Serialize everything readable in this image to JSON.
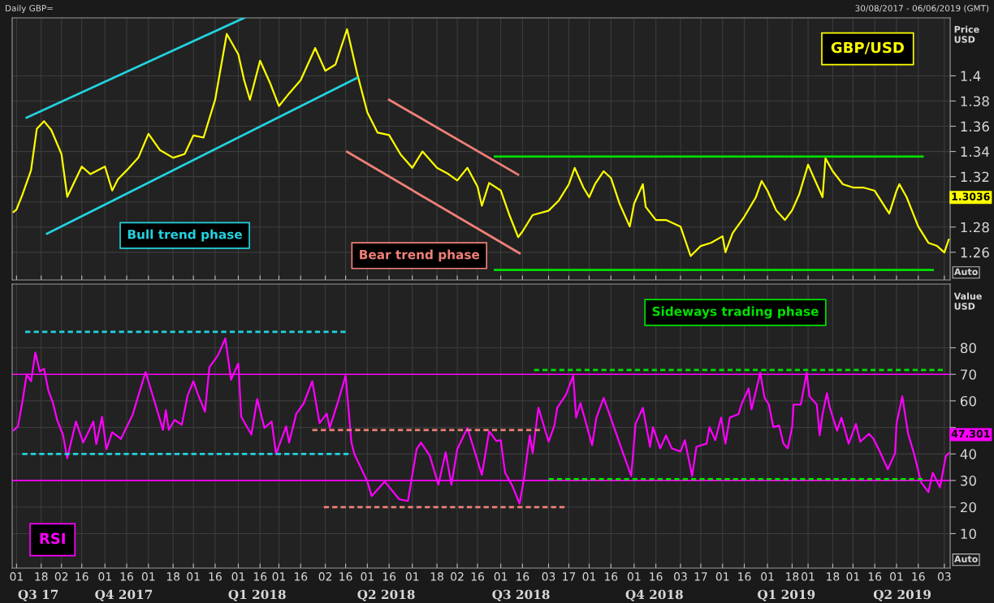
{
  "chart_data": [
    {
      "type": "line",
      "title": "Daily GBP=",
      "subtitle": "30/08/2017 - 06/06/2019 (GMT)",
      "ylabel": "Price\nUSD",
      "grid": true,
      "tick_labels": "y",
      "xlim": [
        "2017-08-29",
        "2019-06-07"
      ],
      "ylim": [
        1.238,
        1.446
      ],
      "xticks": [
        {
          "value": "2017-09-01",
          "label": null
        },
        {
          "value": "2017-09-18",
          "label": null
        },
        {
          "value": "2017-10-02",
          "label": null
        },
        {
          "value": "2017-10-16",
          "label": null
        },
        {
          "value": "2017-11-01",
          "label": null
        },
        {
          "value": "2017-11-16",
          "label": null
        },
        {
          "value": "2017-12-01",
          "label": null
        },
        {
          "value": "2017-12-18",
          "label": null
        },
        {
          "value": "2018-01-01",
          "label": null
        },
        {
          "value": "2018-01-16",
          "label": null
        },
        {
          "value": "2018-02-01",
          "label": null
        },
        {
          "value": "2018-02-16",
          "label": null
        },
        {
          "value": "2018-03-01",
          "label": null
        },
        {
          "value": "2018-03-16",
          "label": null
        },
        {
          "value": "2018-04-02",
          "label": null
        },
        {
          "value": "2018-04-16",
          "label": null
        },
        {
          "value": "2018-05-01",
          "label": null
        },
        {
          "value": "2018-05-16",
          "label": null
        },
        {
          "value": "2018-06-01",
          "label": null
        },
        {
          "value": "2018-06-18",
          "label": null
        },
        {
          "value": "2018-07-02",
          "label": null
        },
        {
          "value": "2018-07-16",
          "label": null
        },
        {
          "value": "2018-08-01",
          "label": null
        },
        {
          "value": "2018-08-16",
          "label": null
        },
        {
          "value": "2018-09-03",
          "label": null
        },
        {
          "value": "2018-09-17",
          "label": null
        },
        {
          "value": "2018-10-01",
          "label": null
        },
        {
          "value": "2018-10-16",
          "label": null
        },
        {
          "value": "2018-11-01",
          "label": null
        },
        {
          "value": "2018-11-16",
          "label": null
        },
        {
          "value": "2018-12-03",
          "label": null
        },
        {
          "value": "2018-12-17",
          "label": null
        },
        {
          "value": "2019-01-01",
          "label": null
        },
        {
          "value": "2019-01-16",
          "label": null
        },
        {
          "value": "2019-02-01",
          "label": null
        },
        {
          "value": "2019-02-18",
          "label": null
        },
        {
          "value": "2019-03-01",
          "label": null
        },
        {
          "value": "2019-03-18",
          "label": null
        },
        {
          "value": "2019-04-01",
          "label": null
        },
        {
          "value": "2019-04-16",
          "label": null
        },
        {
          "value": "2019-05-01",
          "label": null
        },
        {
          "value": "2019-05-16",
          "label": null
        },
        {
          "value": "2019-06-03",
          "label": null
        }
      ],
      "yticks": [
        1.26,
        1.28,
        {
          "value": 1.3,
          "label": null
        },
        1.32,
        1.34,
        1.36,
        1.38,
        1.4
      ],
      "annotations": [
        "Bull trend phase",
        "Bear trend phase",
        "1.3036",
        "Auto"
      ],
      "series": [
        {
          "name": "GBP/USD",
          "color": "#ffff00",
          "line_style": "solid",
          "x": [
            "2017-08-30",
            "2017-09-01",
            "2017-09-05",
            "2017-09-11",
            "2017-09-15",
            "2017-09-20",
            "2017-09-25",
            "2017-10-02",
            "2017-10-06",
            "2017-10-16",
            "2017-10-22",
            "2017-11-01",
            "2017-11-06",
            "2017-11-10",
            "2017-11-16",
            "2017-11-24",
            "2017-12-01",
            "2017-12-09",
            "2017-12-18",
            "2017-12-26",
            "2018-01-01",
            "2018-01-08",
            "2018-01-16",
            "2018-01-24",
            "2018-02-01",
            "2018-02-05",
            "2018-02-09",
            "2018-02-16",
            "2018-02-23",
            "2018-03-01",
            "2018-03-08",
            "2018-03-16",
            "2018-03-26",
            "2018-04-02",
            "2018-04-09",
            "2018-04-17",
            "2018-04-24",
            "2018-05-01",
            "2018-05-08",
            "2018-05-16",
            "2018-05-24",
            "2018-06-01",
            "2018-06-08",
            "2018-06-18",
            "2018-06-26",
            "2018-07-02",
            "2018-07-09",
            "2018-07-16",
            "2018-07-19",
            "2018-07-24",
            "2018-08-01",
            "2018-08-07",
            "2018-08-13",
            "2018-08-16",
            "2018-08-23",
            "2018-09-03",
            "2018-09-10",
            "2018-09-17",
            "2018-09-21",
            "2018-09-27",
            "2018-10-01",
            "2018-10-05",
            "2018-10-11",
            "2018-10-16",
            "2018-10-22",
            "2018-10-29",
            "2018-11-01",
            "2018-11-07",
            "2018-11-09",
            "2018-11-16",
            "2018-11-23",
            "2018-12-03",
            "2018-12-10",
            "2018-12-17",
            "2018-12-24",
            "2019-01-01",
            "2019-01-03",
            "2019-01-08",
            "2019-01-16",
            "2019-01-24",
            "2019-01-28",
            "2019-02-01",
            "2019-02-07",
            "2019-02-13",
            "2019-02-18",
            "2019-02-23",
            "2019-03-01",
            "2019-03-06",
            "2019-03-11",
            "2019-03-13",
            "2019-03-18",
            "2019-03-25",
            "2019-04-01",
            "2019-04-08",
            "2019-04-16",
            "2019-04-23",
            "2019-04-26",
            "2019-05-01",
            "2019-05-03",
            "2019-05-08",
            "2019-05-16",
            "2019-05-23",
            "2019-05-29",
            "2019-06-03",
            "2019-06-06"
          ],
          "values": [
            1.292,
            1.294,
            1.3055,
            1.325,
            1.358,
            1.364,
            1.357,
            1.338,
            1.304,
            1.328,
            1.322,
            1.328,
            1.309,
            1.318,
            1.325,
            1.335,
            1.354,
            1.341,
            1.335,
            1.338,
            1.3527,
            1.351,
            1.381,
            1.4333,
            1.417,
            1.3966,
            1.381,
            1.412,
            1.394,
            1.376,
            1.386,
            1.3966,
            1.422,
            1.404,
            1.409,
            1.437,
            1.4017,
            1.371,
            1.355,
            1.353,
            1.3375,
            1.327,
            1.34,
            1.327,
            1.322,
            1.317,
            1.327,
            1.312,
            1.297,
            1.315,
            1.309,
            1.2895,
            1.272,
            1.2765,
            1.2895,
            1.293,
            1.301,
            1.314,
            1.327,
            1.3114,
            1.3037,
            1.314,
            1.3243,
            1.319,
            1.2985,
            1.2804,
            1.2985,
            1.314,
            1.296,
            1.2856,
            1.2856,
            1.2804,
            1.257,
            1.265,
            1.2675,
            1.2727,
            1.26,
            1.2753,
            1.2882,
            1.3037,
            1.3166,
            1.3088,
            1.2933,
            1.2856,
            1.2933,
            1.3063,
            1.3295,
            1.3166,
            1.3037,
            1.3346,
            1.3243,
            1.314,
            1.3114,
            1.3114,
            1.3088,
            1.296,
            1.2907,
            1.3088,
            1.314,
            1.3037,
            1.2804,
            1.2675,
            1.265,
            1.2598,
            1.27
          ]
        },
        {
          "color": "#22d3e0",
          "line_style": "solid",
          "x": [
            "2017-09-08",
            "2018-02-05"
          ],
          "values": [
            1.3668,
            1.446
          ]
        },
        {
          "color": "#22d3e0",
          "line_style": "solid",
          "x": [
            "2017-09-22",
            "2018-04-24"
          ],
          "values": [
            1.2747,
            1.3985
          ]
        },
        {
          "color": "#f08078",
          "line_style": "solid",
          "x": [
            "2018-05-16",
            "2018-08-13"
          ],
          "values": [
            1.381,
            1.3216
          ]
        },
        {
          "color": "#f08078",
          "line_style": "solid",
          "x": [
            "2018-04-17",
            "2018-08-14"
          ],
          "values": [
            1.3397,
            1.2592
          ]
        },
        {
          "color": "#00e000",
          "line_style": "solid",
          "x": [
            "2018-07-28",
            "2019-05-19"
          ],
          "values": [
            1.336,
            1.336
          ]
        },
        {
          "color": "#00e000",
          "line_style": "solid",
          "x": [
            "2018-07-28",
            "2019-05-26"
          ],
          "values": [
            1.246,
            1.246
          ]
        }
      ]
    },
    {
      "type": "line",
      "ylabel": "Value\nUSD",
      "grid": true,
      "xlim": [
        "2017-08-29",
        "2019-06-07"
      ],
      "ylim": [
        -3,
        104
      ],
      "xticks": [
        {
          "value": "2017-09-01",
          "label": "01"
        },
        {
          "value": "2017-09-18",
          "label": "18"
        },
        {
          "value": "2017-10-02",
          "label": "02"
        },
        {
          "value": "2017-10-16",
          "label": "16"
        },
        {
          "value": "2017-11-01",
          "label": "01"
        },
        {
          "value": "2017-11-16",
          "label": "16"
        },
        {
          "value": "2017-12-01",
          "label": "01"
        },
        {
          "value": "2017-12-18",
          "label": "18"
        },
        {
          "value": "2018-01-01",
          "label": "01"
        },
        {
          "value": "2018-01-16",
          "label": "16"
        },
        {
          "value": "2018-02-01",
          "label": "01"
        },
        {
          "value": "2018-02-16",
          "label": "16"
        },
        {
          "value": "2018-03-01",
          "label": "01"
        },
        {
          "value": "2018-03-16",
          "label": "16"
        },
        {
          "value": "2018-04-02",
          "label": "02"
        },
        {
          "value": "2018-04-16",
          "label": "16"
        },
        {
          "value": "2018-05-01",
          "label": "01"
        },
        {
          "value": "2018-05-16",
          "label": "16"
        },
        {
          "value": "2018-06-01",
          "label": "01"
        },
        {
          "value": "2018-06-18",
          "label": "18"
        },
        {
          "value": "2018-07-02",
          "label": "02"
        },
        {
          "value": "2018-07-16",
          "label": "16"
        },
        {
          "value": "2018-08-01",
          "label": "01"
        },
        {
          "value": "2018-08-16",
          "label": "16"
        },
        {
          "value": "2018-09-03",
          "label": "03"
        },
        {
          "value": "2018-09-17",
          "label": "17"
        },
        {
          "value": "2018-10-01",
          "label": "01"
        },
        {
          "value": "2018-10-16",
          "label": "16"
        },
        {
          "value": "2018-11-01",
          "label": "01"
        },
        {
          "value": "2018-11-16",
          "label": "16"
        },
        {
          "value": "2018-12-03",
          "label": "03"
        },
        {
          "value": "2018-12-17",
          "label": "17"
        },
        {
          "value": "2019-01-01",
          "label": "01"
        },
        {
          "value": "2019-01-16",
          "label": "16"
        },
        {
          "value": "2019-02-01",
          "label": "01"
        },
        {
          "value": "2019-02-18",
          "label": "18"
        },
        {
          "value": "2019-03-01",
          "label": "01"
        },
        {
          "value": "2019-03-18",
          "label": "18"
        },
        {
          "value": "2019-04-01",
          "label": "01"
        },
        {
          "value": "2019-04-16",
          "label": "16"
        },
        {
          "value": "2019-05-01",
          "label": "01"
        },
        {
          "value": "2019-05-16",
          "label": "16"
        },
        {
          "value": "2019-06-03",
          "label": "03"
        }
      ],
      "yticks": [
        10,
        20,
        30,
        40,
        {
          "value": 50,
          "label": null
        },
        60,
        70,
        80
      ],
      "x2lim": [
        "2017-08-29",
        "2019-06-07"
      ],
      "x2ticks": [
        {
          "value": "2017-09-16",
          "label": "Q3 17"
        },
        {
          "value": "2017-11-14",
          "label": "Q4 2017"
        },
        {
          "value": "2018-02-14",
          "label": "Q1 2018"
        },
        {
          "value": "2018-05-14",
          "label": "Q2 2018"
        },
        {
          "value": "2018-08-15",
          "label": "Q3 2018"
        },
        {
          "value": "2018-11-15",
          "label": "Q4 2018"
        },
        {
          "value": "2019-02-14",
          "label": "Q1 2019"
        },
        {
          "value": "2019-05-05",
          "label": "Q2 2019"
        }
      ],
      "ref_lines": [
        {
          "axis": "y",
          "value": 70,
          "color": "#ff00ff",
          "line_style": "solid"
        },
        {
          "axis": "y",
          "value": 30,
          "color": "#ff00ff",
          "line_style": "solid"
        }
      ],
      "annotations": [
        "Sideways trading phase",
        "47.301",
        "Auto"
      ],
      "series": [
        {
          "name": "RSI",
          "color": "#ff00ff",
          "line_style": "solid",
          "x": [
            "2017-08-30",
            "2017-09-02",
            "2017-09-05",
            "2017-09-08",
            "2017-09-11",
            "2017-09-14",
            "2017-09-17",
            "2017-09-20",
            "2017-09-23",
            "2017-09-26",
            "2017-09-29",
            "2017-10-03",
            "2017-10-06",
            "2017-10-12",
            "2017-10-17",
            "2017-10-24",
            "2017-10-26",
            "2017-10-30",
            "2017-11-02",
            "2017-11-06",
            "2017-11-12",
            "2017-11-20",
            "2017-11-23",
            "2017-11-29",
            "2017-12-06",
            "2017-12-11",
            "2017-12-13",
            "2017-12-15",
            "2017-12-19",
            "2017-12-24",
            "2017-12-28",
            "2018-01-01",
            "2018-01-04",
            "2018-01-09",
            "2018-01-12",
            "2018-01-18",
            "2018-01-23",
            "2018-01-27",
            "2018-02-01",
            "2018-02-03",
            "2018-02-10",
            "2018-02-14",
            "2018-02-19",
            "2018-02-24",
            "2018-02-27",
            "2018-03-06",
            "2018-03-08",
            "2018-03-13",
            "2018-03-18",
            "2018-03-24",
            "2018-03-29",
            "2018-04-03",
            "2018-04-05",
            "2018-04-11",
            "2018-04-16",
            "2018-04-20",
            "2018-04-22",
            "2018-05-01",
            "2018-05-04",
            "2018-05-13",
            "2018-05-23",
            "2018-05-29",
            "2018-06-01",
            "2018-06-04",
            "2018-06-07",
            "2018-06-13",
            "2018-06-19",
            "2018-06-24",
            "2018-06-28",
            "2018-07-02",
            "2018-07-09",
            "2018-07-19",
            "2018-07-24",
            "2018-07-29",
            "2018-08-01",
            "2018-08-04",
            "2018-08-09",
            "2018-08-14",
            "2018-08-17",
            "2018-08-21",
            "2018-08-23",
            "2018-08-27",
            "2018-09-03",
            "2018-09-07",
            "2018-09-09",
            "2018-09-15",
            "2018-09-20",
            "2018-09-22",
            "2018-09-25",
            "2018-10-03",
            "2018-10-06",
            "2018-10-11",
            "2018-10-15",
            "2018-10-22",
            "2018-10-30",
            "2018-11-02",
            "2018-11-07",
            "2018-11-12",
            "2018-11-14",
            "2018-11-19",
            "2018-11-23",
            "2018-11-27",
            "2018-12-03",
            "2018-12-06",
            "2018-12-11",
            "2018-12-14",
            "2018-12-21",
            "2018-12-23",
            "2018-12-27",
            "2018-12-31",
            "2019-01-03",
            "2019-01-06",
            "2019-01-12",
            "2019-01-14",
            "2019-01-19",
            "2019-01-21",
            "2019-01-27",
            "2019-01-30",
            "2019-02-02",
            "2019-02-05",
            "2019-02-09",
            "2019-02-12",
            "2019-02-15",
            "2019-02-18",
            "2019-02-19",
            "2019-02-24",
            "2019-02-28",
            "2019-03-02",
            "2019-03-07",
            "2019-03-09",
            "2019-03-11",
            "2019-03-14",
            "2019-03-16",
            "2019-03-21",
            "2019-03-24",
            "2019-03-29",
            "2019-04-03",
            "2019-04-06",
            "2019-04-12",
            "2019-04-15",
            "2019-04-19",
            "2019-04-25",
            "2019-04-30",
            "2019-05-01",
            "2019-05-05",
            "2019-05-09",
            "2019-05-13",
            "2019-05-18",
            "2019-05-23",
            "2019-05-26",
            "2019-05-31",
            "2019-06-04",
            "2019-06-06"
          ],
          "values": [
            48.9,
            50.4,
            59.5,
            69.9,
            67.4,
            78.2,
            71.1,
            72.1,
            63.8,
            59.5,
            52.8,
            47.3,
            38.4,
            52.2,
            44.3,
            52.2,
            43.7,
            54.0,
            41.8,
            48.2,
            45.7,
            54.6,
            60.1,
            70.9,
            58.3,
            49.1,
            56.5,
            49.1,
            52.8,
            51.0,
            62.0,
            67.4,
            62.6,
            55.9,
            72.6,
            77.2,
            83.5,
            68.0,
            74.1,
            54.0,
            47.3,
            60.7,
            49.8,
            52.2,
            40.0,
            50.4,
            44.3,
            55.2,
            58.9,
            67.4,
            51.6,
            55.2,
            49.8,
            60.1,
            69.5,
            44.3,
            40.0,
            29.6,
            24.1,
            29.6,
            22.9,
            22.3,
            32.1,
            41.8,
            44.3,
            39.4,
            28.4,
            40.6,
            28.4,
            41.8,
            49.8,
            32.1,
            48.5,
            44.9,
            45.2,
            32.9,
            28.0,
            21.3,
            30.5,
            47.0,
            40.3,
            57.4,
            44.6,
            50.7,
            57.4,
            62.3,
            69.6,
            53.7,
            59.2,
            43.3,
            53.7,
            61.1,
            55.0,
            44.0,
            31.7,
            51.3,
            57.4,
            42.7,
            50.1,
            42.1,
            47.0,
            42.1,
            40.9,
            45.2,
            31.7,
            42.7,
            43.9,
            50.1,
            45.2,
            53.7,
            43.9,
            53.7,
            55.0,
            58.6,
            64.7,
            56.8,
            70.6,
            61.1,
            58.6,
            50.1,
            50.7,
            43.9,
            42.1,
            50.1,
            58.6,
            58.6,
            70.6,
            61.7,
            58.6,
            47.0,
            55.0,
            62.9,
            57.4,
            48.8,
            53.7,
            43.9,
            51.3,
            44.6,
            47.6,
            45.8,
            41.5,
            34.2,
            40.3,
            51.3,
            61.7,
            47.6,
            40.3,
            29.3,
            25.6,
            32.9,
            27.4,
            39.1,
            40.3
          ]
        },
        {
          "color": "#22d3e0",
          "line_style": "dashed",
          "x": [
            "2017-09-07",
            "2018-04-16"
          ],
          "values": [
            86,
            86
          ]
        },
        {
          "color": "#22d3e0",
          "line_style": "dashed",
          "x": [
            "2017-09-05",
            "2018-04-18"
          ],
          "values": [
            40,
            40
          ]
        },
        {
          "color": "#f08078",
          "line_style": "dashed",
          "x": [
            "2018-03-24",
            "2018-08-28"
          ],
          "values": [
            49,
            49
          ]
        },
        {
          "color": "#f08078",
          "line_style": "dashed",
          "x": [
            "2018-04-01",
            "2018-09-14"
          ],
          "values": [
            20,
            20
          ]
        },
        {
          "color": "#00e000",
          "line_style": "dashed",
          "x": [
            "2018-08-24",
            "2019-06-02"
          ],
          "values": [
            71.6,
            71.6
          ]
        },
        {
          "color": "#00e000",
          "line_style": "dashed",
          "x": [
            "2018-09-03",
            "2019-05-19"
          ],
          "values": [
            30.5,
            30.5
          ]
        }
      ]
    }
  ]
}
